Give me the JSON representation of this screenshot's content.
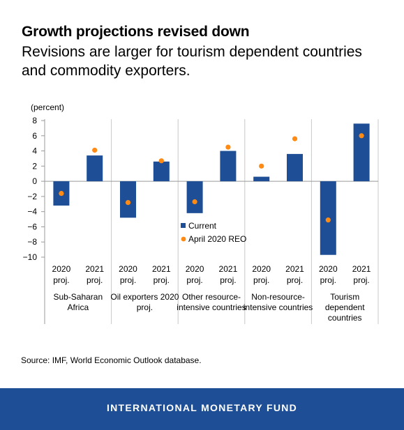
{
  "title": "Growth projections revised down",
  "subtitle": "Revisions are larger for tourism dependent countries and commodity exporters.",
  "source": "Source: IMF, World Economic Outlook database.",
  "footer": "INTERNATIONAL MONETARY FUND",
  "colors": {
    "bar": "#1e4f96",
    "marker": "#ff8a14",
    "footer": "#1e4f96"
  },
  "chart_data": {
    "type": "bar",
    "ylabel": "(percent)",
    "ylim": [
      -10,
      8
    ],
    "yticks": [
      8,
      6,
      4,
      2,
      0,
      -2,
      -4,
      -6,
      -8,
      -10
    ],
    "ytick_labels": [
      "8",
      "6",
      "4",
      "2",
      "0",
      "−2",
      "−4",
      "−6",
      "−8",
      "−10"
    ],
    "categories": [
      "2020 proj.",
      "2021 proj.",
      "2020 proj.",
      "2021 proj.",
      "2020 proj.",
      "2021 proj.",
      "2020 proj.",
      "2021 proj.",
      "2020 proj.",
      "2021 proj."
    ],
    "groups": [
      {
        "label": "Sub-Saharan Africa",
        "lines": [
          "Sub-Saharan",
          "Africa"
        ]
      },
      {
        "label": "Oil exporters 2020 proj.",
        "lines": [
          "Oil exporters 2020",
          "proj."
        ]
      },
      {
        "label": "Other resource-intensive countries",
        "lines": [
          "Other resource-",
          "intensive countries"
        ]
      },
      {
        "label": "Non-resource-intensive countries",
        "lines": [
          "Non-resource-",
          "intensive countries"
        ]
      },
      {
        "label": "Tourism dependent countries",
        "lines": [
          "Tourism",
          "dependent",
          "countries"
        ]
      }
    ],
    "series": [
      {
        "name": "Current",
        "kind": "bar",
        "values": [
          -3.2,
          3.4,
          -4.8,
          2.6,
          -4.2,
          4.0,
          0.6,
          3.6,
          -9.7,
          7.6
        ]
      },
      {
        "name": "April 2020 REO",
        "kind": "marker",
        "values": [
          -1.6,
          4.1,
          -2.8,
          2.7,
          -2.7,
          4.5,
          2.0,
          5.6,
          -5.1,
          6.0
        ]
      }
    ],
    "legend": {
      "position": "center"
    }
  }
}
